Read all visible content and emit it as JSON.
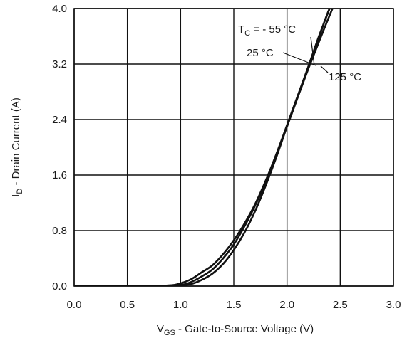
{
  "chart_data": {
    "type": "line",
    "title": "",
    "xlabel": {
      "main": "V",
      "sub": "GS",
      "rest": " - Gate-to-Source Voltage (V)"
    },
    "ylabel": {
      "main": "I",
      "sub": "D",
      "rest": " - Drain Current (A)"
    },
    "xlim": [
      0,
      3.0
    ],
    "ylim": [
      0,
      4.0
    ],
    "grid": true,
    "xticks": [
      "0.0",
      "0.5",
      "1.0",
      "1.5",
      "2.0",
      "2.5",
      "3.0"
    ],
    "yticks": [
      "0.0",
      "0.8",
      "1.6",
      "2.4",
      "3.2",
      "4.0"
    ],
    "series": [
      {
        "name": "T_C = -55 °C",
        "x": [
          0,
          0.6,
          0.9,
          1.0,
          1.1,
          1.2,
          1.3,
          1.4,
          1.5,
          1.6,
          1.7,
          1.8,
          1.9,
          2.0,
          2.1,
          2.2,
          2.3,
          2.4,
          2.45
        ],
        "y": [
          0,
          0.0,
          0.01,
          0.04,
          0.1,
          0.2,
          0.3,
          0.46,
          0.66,
          0.9,
          1.18,
          1.52,
          1.9,
          2.3,
          2.72,
          3.16,
          3.6,
          4.0,
          4.2
        ]
      },
      {
        "name": "25 °C",
        "x": [
          0,
          0.7,
          1.0,
          1.1,
          1.2,
          1.3,
          1.4,
          1.5,
          1.6,
          1.7,
          1.8,
          1.9,
          2.0,
          2.1,
          2.2,
          2.3,
          2.4,
          2.5
        ],
        "y": [
          0,
          0.0,
          0.02,
          0.06,
          0.14,
          0.24,
          0.4,
          0.6,
          0.86,
          1.16,
          1.5,
          1.9,
          2.32,
          2.74,
          3.16,
          3.58,
          4.0,
          4.2
        ]
      },
      {
        "name": "125 °C",
        "x": [
          0,
          0.8,
          1.0,
          1.1,
          1.2,
          1.3,
          1.4,
          1.5,
          1.6,
          1.7,
          1.8,
          1.9,
          2.0,
          2.1,
          2.2,
          2.3,
          2.4,
          2.5,
          2.6
        ],
        "y": [
          0,
          0.0,
          0.01,
          0.03,
          0.09,
          0.18,
          0.32,
          0.52,
          0.77,
          1.08,
          1.45,
          1.86,
          2.3,
          2.72,
          3.13,
          3.52,
          3.9,
          4.25,
          4.5
        ]
      }
    ],
    "annotations": {
      "tc_prefix": "T",
      "tc_sub": "C",
      "tc_rest": " = - 55 °C",
      "t25": "25 °C",
      "t125": "125 °C"
    },
    "colors": {
      "line": "#111111",
      "grid": "#111111",
      "background": "#ffffff"
    }
  }
}
